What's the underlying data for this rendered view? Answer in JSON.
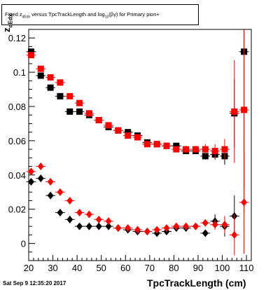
{
  "title": "Fitted  z_dEdx versus TpcTrackLength and log10(βγ) for Primary pion+",
  "title_parts": {
    "pre": "Fitted  z",
    "sub1": "dEdx",
    "mid": " versus TpcTrackLength and log",
    "sub2": "10",
    "post": "(βγ) for Primary pion+"
  },
  "footer_date": "Sat Sep  9 12:35:20 2017",
  "chart_data": {
    "type": "scatter",
    "title": "Fitted  z_dEdx versus TpcTrackLength and log10(βγ) for Primary pion+",
    "xlabel": "TpcTrackLength (cm)",
    "ylabel_main": "z",
    "ylabel_sub": "dEdx",
    "xlim": [
      20,
      112
    ],
    "ylim": [
      -0.01,
      0.125
    ],
    "x_ticks": [
      20,
      30,
      40,
      50,
      60,
      70,
      80,
      90,
      100,
      110
    ],
    "y_ticks": [
      0,
      0.02,
      0.04,
      0.06,
      0.08,
      0.1,
      0.12
    ],
    "y_tick_labels": [
      "0",
      "0.02",
      "0.04",
      "0.06",
      "0.08",
      "0.1",
      "0.12"
    ],
    "grid": false,
    "series": [
      {
        "marker": "square",
        "color": "#000000",
        "points": [
          [
            21,
            0.112
          ],
          [
            25,
            0.098
          ],
          [
            29,
            0.091
          ],
          [
            33,
            0.086
          ],
          [
            37,
            0.077
          ],
          [
            41,
            0.077
          ],
          [
            45,
            0.075
          ],
          [
            49,
            0.072
          ],
          [
            53,
            0.068
          ],
          [
            57,
            0.066
          ],
          [
            61,
            0.065
          ],
          [
            65,
            0.063
          ],
          [
            69,
            0.059
          ],
          [
            73,
            0.058
          ],
          [
            77,
            0.057
          ],
          [
            81,
            0.057
          ],
          [
            85,
            0.054
          ],
          [
            89,
            0.054
          ],
          [
            93,
            0.051
          ],
          [
            97,
            0.052
          ],
          [
            101,
            0.051
          ],
          [
            105,
            0.076
          ],
          [
            109,
            0.112
          ]
        ],
        "err": [
          0.001,
          0.001,
          0.001,
          0.001,
          0.001,
          0.001,
          0.001,
          0.001,
          0.001,
          0.001,
          0.001,
          0.001,
          0.001,
          0.001,
          0.001,
          0.001,
          0.001,
          0.001,
          0.002,
          0.003,
          0.005,
          0.02,
          0.08
        ]
      },
      {
        "marker": "square",
        "color": "#ff0000",
        "points": [
          [
            21,
            0.11
          ],
          [
            25,
            0.102
          ],
          [
            29,
            0.097
          ],
          [
            33,
            0.094
          ],
          [
            37,
            0.086
          ],
          [
            41,
            0.082
          ],
          [
            45,
            0.076
          ],
          [
            49,
            0.072
          ],
          [
            53,
            0.069
          ],
          [
            57,
            0.066
          ],
          [
            61,
            0.063
          ],
          [
            65,
            0.062
          ],
          [
            69,
            0.058
          ],
          [
            73,
            0.058
          ],
          [
            77,
            0.057
          ],
          [
            81,
            0.055
          ],
          [
            85,
            0.055
          ],
          [
            89,
            0.055
          ],
          [
            93,
            0.055
          ],
          [
            97,
            0.054
          ],
          [
            101,
            0.055
          ],
          [
            105,
            0.077
          ],
          [
            109,
            0.078
          ]
        ],
        "err": [
          0.001,
          0.001,
          0.001,
          0.001,
          0.001,
          0.001,
          0.001,
          0.001,
          0.001,
          0.001,
          0.001,
          0.001,
          0.001,
          0.001,
          0.001,
          0.001,
          0.002,
          0.002,
          0.003,
          0.004,
          0.006,
          0.03,
          0.06
        ]
      },
      {
        "marker": "diamond",
        "color": "#000000",
        "points": [
          [
            21,
            0.036
          ],
          [
            25,
            0.038
          ],
          [
            29,
            0.028
          ],
          [
            33,
            0.018
          ],
          [
            37,
            0.014
          ],
          [
            41,
            0.01
          ],
          [
            45,
            0.01
          ],
          [
            49,
            0.01
          ],
          [
            53,
            0.01
          ],
          [
            57,
            0.009
          ],
          [
            61,
            0.008
          ],
          [
            65,
            0.007
          ],
          [
            69,
            0.007
          ],
          [
            73,
            0.006
          ],
          [
            77,
            0.007
          ],
          [
            81,
            0.009
          ],
          [
            85,
            0.009
          ],
          [
            89,
            0.01
          ],
          [
            93,
            0.006
          ],
          [
            97,
            0.013
          ],
          [
            101,
            0.01
          ],
          [
            105,
            0.016
          ]
        ],
        "err": [
          0.001,
          0.001,
          0.001,
          0.001,
          0.001,
          0.001,
          0.001,
          0.001,
          0.001,
          0.001,
          0.001,
          0.001,
          0.001,
          0.001,
          0.001,
          0.001,
          0.001,
          0.001,
          0.002,
          0.004,
          0.006,
          0.012
        ]
      },
      {
        "marker": "diamond",
        "color": "#ff0000",
        "points": [
          [
            21,
            0.042
          ],
          [
            25,
            0.045
          ],
          [
            29,
            0.036
          ],
          [
            33,
            0.03
          ],
          [
            37,
            0.025
          ],
          [
            41,
            0.018
          ],
          [
            45,
            0.017
          ],
          [
            49,
            0.014
          ],
          [
            53,
            0.013
          ],
          [
            57,
            0.009
          ],
          [
            61,
            0.009
          ],
          [
            65,
            0.008
          ],
          [
            69,
            0.007
          ],
          [
            73,
            0.008
          ],
          [
            77,
            0.009
          ],
          [
            81,
            0.01
          ],
          [
            85,
            0.01
          ],
          [
            89,
            0.01
          ],
          [
            93,
            0.012
          ],
          [
            97,
            0.011
          ],
          [
            101,
            0.011
          ],
          [
            105,
            0.005
          ],
          [
            109,
            0.024
          ]
        ],
        "err": [
          0.001,
          0.001,
          0.001,
          0.001,
          0.001,
          0.001,
          0.001,
          0.001,
          0.001,
          0.001,
          0.001,
          0.001,
          0.001,
          0.001,
          0.001,
          0.001,
          0.001,
          0.001,
          0.002,
          0.003,
          0.005,
          0.012,
          0.03
        ]
      }
    ]
  }
}
